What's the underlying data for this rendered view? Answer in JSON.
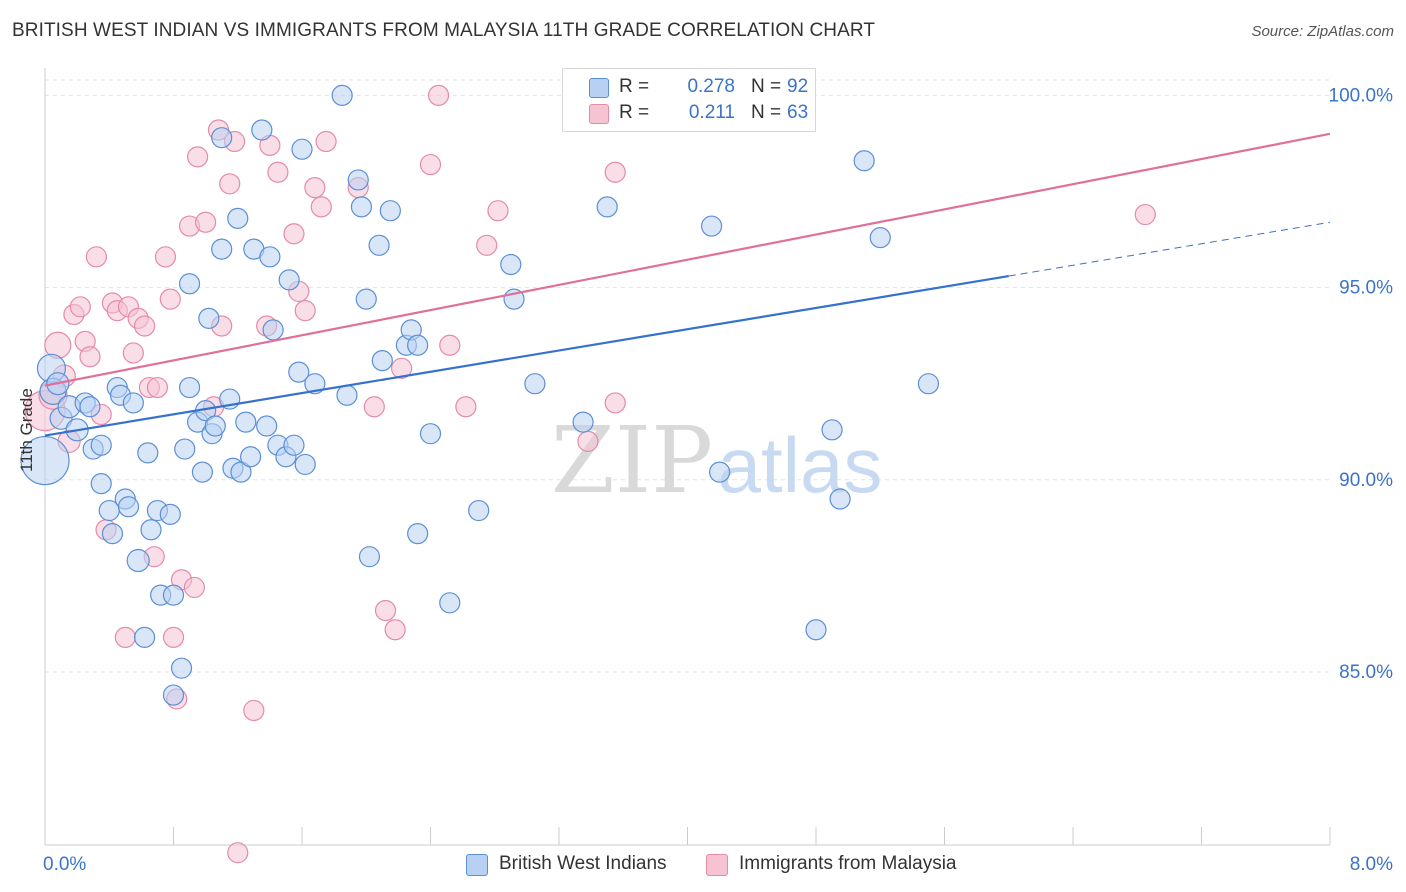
{
  "header": {
    "title": "BRITISH WEST INDIAN VS IMMIGRANTS FROM MALAYSIA 11TH GRADE CORRELATION CHART",
    "source": "Source: ZipAtlas.com"
  },
  "watermark": {
    "zip": "ZIP",
    "atlas": "atlas"
  },
  "legend": {
    "rows": [
      {
        "r_label": "R =",
        "r_value": "0.278",
        "n_label": "N =",
        "n_value": "92"
      },
      {
        "r_label": "R =",
        "r_value": "0.211",
        "n_label": "N =",
        "n_value": "63"
      }
    ]
  },
  "bottom_legend": {
    "items": [
      {
        "label": "British West Indians"
      },
      {
        "label": "Immigrants from Malaysia"
      }
    ]
  },
  "colors": {
    "blue_fill": "#b8d1f2",
    "blue_stroke": "#5b8fd6",
    "blue_line": "#3672cc",
    "pink_fill": "#f6c3d3",
    "pink_stroke": "#e58aa7",
    "pink_line": "#e0709a",
    "tick_label": "#3a73c8",
    "grid": "#e3e3e3"
  },
  "chart_data": {
    "type": "scatter",
    "title": "BRITISH WEST INDIAN VS IMMIGRANTS FROM MALAYSIA 11TH GRADE CORRELATION CHART",
    "xlabel": "",
    "ylabel": "11th Grade",
    "xlim": [
      0.0,
      8.0
    ],
    "ylim": [
      80.5,
      100.4
    ],
    "x_tick_labels": [
      "0.0%",
      "8.0%"
    ],
    "y_ticks": [
      85.0,
      90.0,
      95.0,
      100.0
    ],
    "y_tick_labels": [
      "85.0%",
      "90.0%",
      "95.0%",
      "100.0%"
    ],
    "grid": true,
    "legend_position": "top-center",
    "series": [
      {
        "name": "British West Indians",
        "color": "#5b8fd6",
        "r": 0.278,
        "n": 92,
        "trend": {
          "x0": 0.0,
          "y0": 91.15,
          "x1": 6.0,
          "y1": 95.3,
          "dashed_to_x": 8.0,
          "dashed_to_y": 96.7
        },
        "points": [
          [
            0.0,
            90.5,
            24
          ],
          [
            0.04,
            92.9,
            14
          ],
          [
            0.05,
            92.3,
            13
          ],
          [
            0.08,
            92.5,
            11
          ],
          [
            0.1,
            91.6,
            11
          ],
          [
            0.15,
            91.9,
            11
          ],
          [
            0.2,
            91.3,
            11
          ],
          [
            0.25,
            92.0,
            10
          ],
          [
            0.28,
            91.9,
            10
          ],
          [
            0.3,
            90.8,
            10
          ],
          [
            0.35,
            90.9,
            10
          ],
          [
            0.35,
            89.9,
            10
          ],
          [
            0.4,
            89.2,
            10
          ],
          [
            0.42,
            88.6,
            10
          ],
          [
            0.45,
            92.4,
            10
          ],
          [
            0.47,
            92.2,
            10
          ],
          [
            0.5,
            89.5,
            10
          ],
          [
            0.52,
            89.3,
            10
          ],
          [
            0.55,
            92.0,
            10
          ],
          [
            0.58,
            87.9,
            11
          ],
          [
            0.62,
            85.9,
            10
          ],
          [
            0.64,
            90.7,
            10
          ],
          [
            0.66,
            88.7,
            10
          ],
          [
            0.7,
            89.2,
            10
          ],
          [
            0.72,
            87.0,
            10
          ],
          [
            0.78,
            89.1,
            10
          ],
          [
            0.8,
            87.0,
            10
          ],
          [
            0.8,
            84.4,
            10
          ],
          [
            0.85,
            85.1,
            10
          ],
          [
            0.87,
            90.8,
            10
          ],
          [
            0.9,
            92.4,
            10
          ],
          [
            0.9,
            95.1,
            10
          ],
          [
            0.95,
            91.5,
            10
          ],
          [
            0.98,
            90.2,
            10
          ],
          [
            1.0,
            91.8,
            10
          ],
          [
            1.02,
            94.2,
            10
          ],
          [
            1.04,
            91.2,
            10
          ],
          [
            1.06,
            91.4,
            10
          ],
          [
            1.1,
            98.9,
            10
          ],
          [
            1.1,
            96.0,
            10
          ],
          [
            1.15,
            92.1,
            10
          ],
          [
            1.17,
            90.3,
            10
          ],
          [
            1.2,
            96.8,
            10
          ],
          [
            1.22,
            90.2,
            10
          ],
          [
            1.25,
            91.5,
            10
          ],
          [
            1.28,
            90.6,
            10
          ],
          [
            1.3,
            96.0,
            10
          ],
          [
            1.35,
            99.1,
            10
          ],
          [
            1.38,
            91.4,
            10
          ],
          [
            1.4,
            95.8,
            10
          ],
          [
            1.42,
            93.9,
            10
          ],
          [
            1.45,
            90.9,
            10
          ],
          [
            1.5,
            90.6,
            10
          ],
          [
            1.52,
            95.2,
            10
          ],
          [
            1.55,
            90.9,
            10
          ],
          [
            1.58,
            92.8,
            10
          ],
          [
            1.6,
            98.6,
            10
          ],
          [
            1.62,
            90.4,
            10
          ],
          [
            1.68,
            92.5,
            10
          ],
          [
            1.85,
            100.0,
            10
          ],
          [
            1.88,
            92.2,
            10
          ],
          [
            1.95,
            97.8,
            10
          ],
          [
            1.97,
            97.1,
            10
          ],
          [
            2.0,
            94.7,
            10
          ],
          [
            2.02,
            88.0,
            10
          ],
          [
            2.08,
            96.1,
            10
          ],
          [
            2.1,
            93.1,
            10
          ],
          [
            2.15,
            97.0,
            10
          ],
          [
            2.25,
            93.5,
            10
          ],
          [
            2.28,
            93.9,
            10
          ],
          [
            2.32,
            93.5,
            10
          ],
          [
            2.32,
            88.6,
            10
          ],
          [
            2.4,
            91.2,
            10
          ],
          [
            2.52,
            86.8,
            10
          ],
          [
            2.7,
            89.2,
            10
          ],
          [
            2.9,
            95.6,
            10
          ],
          [
            2.92,
            94.7,
            10
          ],
          [
            3.05,
            92.5,
            10
          ],
          [
            3.35,
            91.5,
            10
          ],
          [
            3.5,
            97.1,
            10
          ],
          [
            3.75,
            99.8,
            10
          ],
          [
            4.15,
            96.6,
            10
          ],
          [
            4.2,
            90.2,
            10
          ],
          [
            4.8,
            86.1,
            10
          ],
          [
            4.9,
            91.3,
            10
          ],
          [
            4.95,
            89.5,
            10
          ],
          [
            5.1,
            98.3,
            10
          ],
          [
            5.2,
            96.3,
            10
          ],
          [
            5.5,
            92.5,
            10
          ],
          [
            2.6,
            94.3,
            0
          ],
          [
            3.0,
            95.0,
            0
          ],
          [
            1.9,
            93.6,
            0
          ]
        ]
      },
      {
        "name": "Immigrants from Malaysia",
        "color": "#e58aa7",
        "r": 0.211,
        "n": 63,
        "trend": {
          "x0": 0.0,
          "y0": 92.45,
          "x1": 8.0,
          "y1": 99.0
        },
        "points": [
          [
            0.0,
            91.8,
            20
          ],
          [
            0.05,
            92.2,
            14
          ],
          [
            0.08,
            93.5,
            13
          ],
          [
            0.12,
            92.7,
            11
          ],
          [
            0.15,
            91.0,
            11
          ],
          [
            0.18,
            94.3,
            10
          ],
          [
            0.22,
            94.5,
            10
          ],
          [
            0.25,
            93.6,
            10
          ],
          [
            0.28,
            93.2,
            10
          ],
          [
            0.32,
            95.8,
            10
          ],
          [
            0.35,
            91.7,
            10
          ],
          [
            0.38,
            88.7,
            10
          ],
          [
            0.42,
            94.6,
            10
          ],
          [
            0.45,
            94.4,
            10
          ],
          [
            0.5,
            85.9,
            10
          ],
          [
            0.52,
            94.5,
            10
          ],
          [
            0.55,
            93.3,
            10
          ],
          [
            0.58,
            94.2,
            10
          ],
          [
            0.62,
            94.0,
            10
          ],
          [
            0.65,
            92.4,
            10
          ],
          [
            0.68,
            88.0,
            10
          ],
          [
            0.7,
            92.4,
            10
          ],
          [
            0.75,
            95.8,
            10
          ],
          [
            0.78,
            94.7,
            10
          ],
          [
            0.8,
            85.9,
            10
          ],
          [
            0.82,
            84.3,
            10
          ],
          [
            0.85,
            87.4,
            10
          ],
          [
            0.9,
            96.6,
            10
          ],
          [
            0.93,
            87.2,
            10
          ],
          [
            0.95,
            98.4,
            10
          ],
          [
            1.0,
            96.7,
            10
          ],
          [
            1.05,
            91.9,
            10
          ],
          [
            1.08,
            99.1,
            10
          ],
          [
            1.1,
            94.0,
            10
          ],
          [
            1.15,
            97.7,
            10
          ],
          [
            1.18,
            98.8,
            10
          ],
          [
            1.2,
            80.3,
            10
          ],
          [
            1.3,
            84.0,
            10
          ],
          [
            1.38,
            94.0,
            10
          ],
          [
            1.4,
            98.7,
            10
          ],
          [
            1.45,
            98.0,
            10
          ],
          [
            1.55,
            96.4,
            10
          ],
          [
            1.58,
            94.9,
            10
          ],
          [
            1.62,
            94.4,
            10
          ],
          [
            1.68,
            97.6,
            10
          ],
          [
            1.72,
            97.1,
            10
          ],
          [
            1.75,
            98.8,
            10
          ],
          [
            1.95,
            97.6,
            10
          ],
          [
            2.05,
            91.9,
            10
          ],
          [
            2.12,
            86.6,
            10
          ],
          [
            2.18,
            86.1,
            10
          ],
          [
            2.22,
            92.9,
            10
          ],
          [
            2.4,
            98.2,
            10
          ],
          [
            2.45,
            100.0,
            10
          ],
          [
            2.52,
            93.5,
            10
          ],
          [
            2.62,
            91.9,
            10
          ],
          [
            2.75,
            96.1,
            10
          ],
          [
            2.82,
            97.0,
            10
          ],
          [
            3.38,
            91.0,
            10
          ],
          [
            3.55,
            98.0,
            10
          ],
          [
            3.55,
            92.0,
            10
          ],
          [
            6.85,
            96.9,
            10
          ],
          [
            1.95,
            95.1,
            0
          ]
        ]
      }
    ]
  }
}
